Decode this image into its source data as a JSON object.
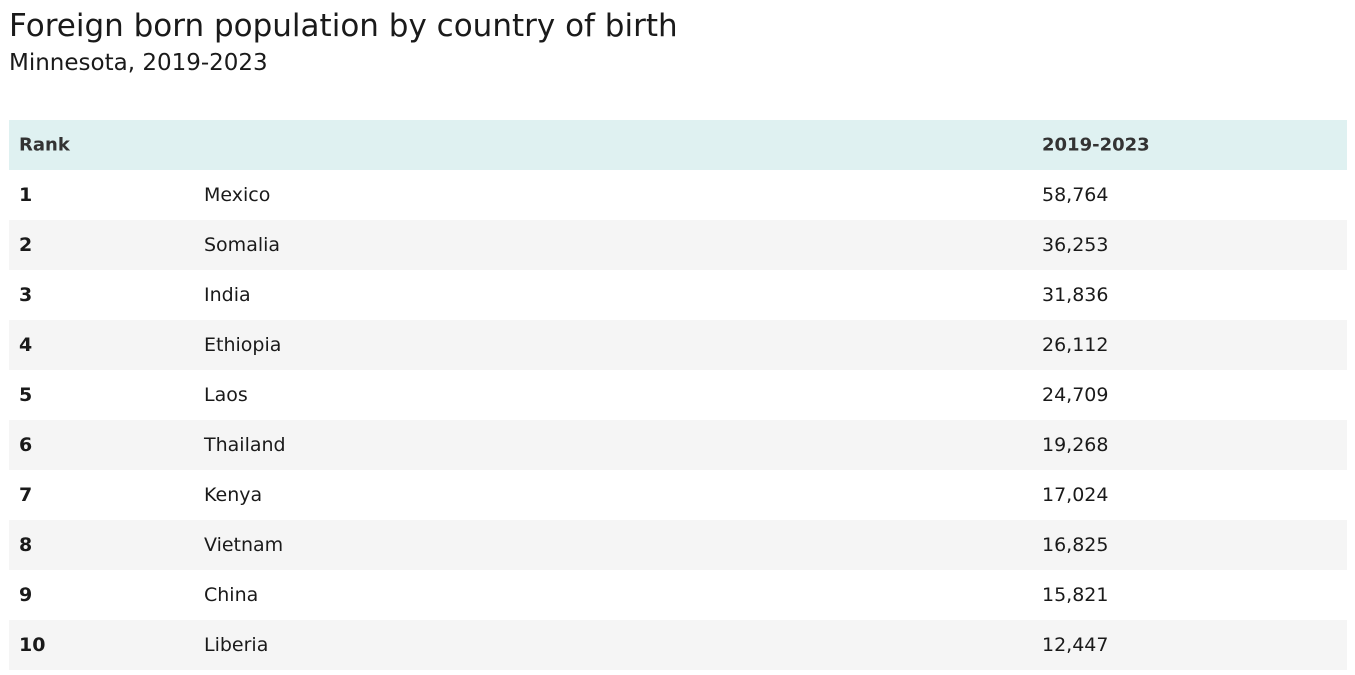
{
  "header": {
    "title": "Foreign born population by country of birth",
    "subtitle": "Minnesota, 2019-2023"
  },
  "table": {
    "rank_header": "Rank",
    "value_header": "2019-2023",
    "rows": [
      [
        "1",
        "Mexico",
        "58,764"
      ],
      [
        "2",
        "Somalia",
        "36,253"
      ],
      [
        "3",
        "India",
        "31,836"
      ],
      [
        "4",
        "Ethiopia",
        "26,112"
      ],
      [
        "5",
        "Laos",
        "24,709"
      ],
      [
        "6",
        "Thailand",
        "19,268"
      ],
      [
        "7",
        "Kenya",
        "17,024"
      ],
      [
        "8",
        "Vietnam",
        "16,825"
      ],
      [
        "9",
        "China",
        "15,821"
      ],
      [
        "10",
        "Liberia",
        "12,447"
      ]
    ]
  }
}
